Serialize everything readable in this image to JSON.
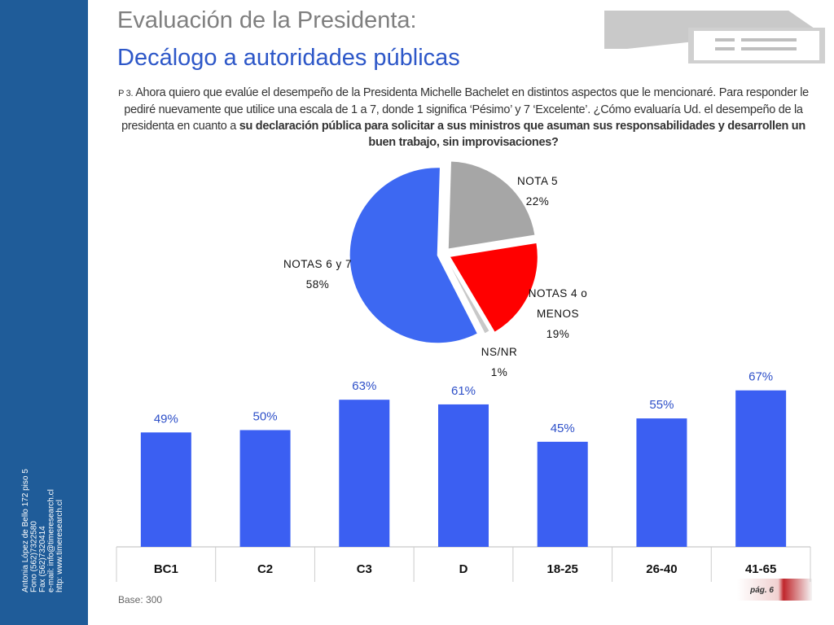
{
  "title_line1": "Evaluación de la Presidenta:",
  "title_line2": "Decálogo a autoridades públicas",
  "question": {
    "number": "P 3.",
    "text": "Ahora quiero que evalúe el desempeño de la Presidenta Michelle Bachelet en distintos aspectos que le mencionaré. Para responder le pediré nuevamente que utilice una escala de 1 a 7, donde 1 significa ‘Pésimo’ y 7 ‘Excelente’. ¿Cómo evaluaría Ud. el desempeño de la presidenta en cuanto a",
    "bold": "su declaración pública para solicitar a sus ministros que asuman sus responsabilidades y desarrollen un buen trabajo, sin improvisaciones?"
  },
  "sidebar": [
    "Antonia López de Bello 172 piso 5",
    "Fono (562)7322580",
    "Fax (562)7320414",
    "e-mail: info@timeresearch.cl",
    "http: www.timeresearch.cl"
  ],
  "base": "Base: 300",
  "page": "pág. 6",
  "chart_data": [
    {
      "type": "pie",
      "categories": [
        "NOTA  5",
        "NOTAS 4 o MENOS",
        "NS/NR",
        "NOTAS 6 y 7"
      ],
      "values": [
        22,
        19,
        1,
        58
      ],
      "value_labels": [
        "22%",
        "19%",
        "1%",
        "58%"
      ],
      "colors": [
        "#a6a6a6",
        "#ff0000",
        "#c8c8c8",
        "#3d68f2"
      ]
    },
    {
      "type": "bar",
      "categories": [
        "BC1",
        "C2",
        "C3",
        "D",
        "18-25",
        "26-40",
        "41-65"
      ],
      "values": [
        49,
        50,
        63,
        61,
        45,
        55,
        67
      ],
      "value_labels": [
        "49%",
        "50%",
        "63%",
        "61%",
        "45%",
        "55%",
        "67%"
      ],
      "color": "#3b5ff2"
    }
  ]
}
